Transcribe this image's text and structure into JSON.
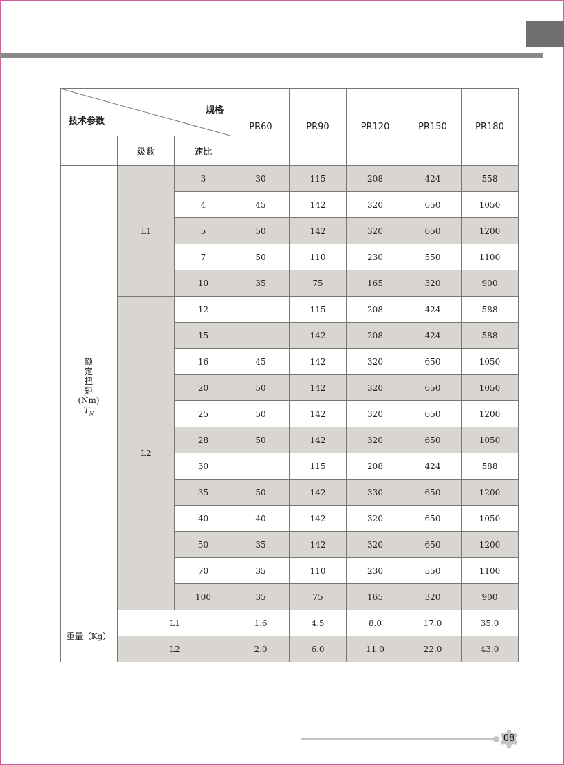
{
  "header": {
    "param_label": "技术参数",
    "spec_label": "规格",
    "stage_label": "级数",
    "ratio_label": "速比"
  },
  "models": [
    "PR60",
    "PR90",
    "PR120",
    "PR150",
    "PR180"
  ],
  "torque": {
    "label_chars": [
      "额",
      "定",
      "扭",
      "矩"
    ],
    "unit": "(Nm)",
    "symbol": "T",
    "symbol_sub": "N"
  },
  "stages": [
    {
      "stage": "L1",
      "rows": [
        {
          "ratio": "3",
          "values": [
            "30",
            "115",
            "208",
            "424",
            "558"
          ]
        },
        {
          "ratio": "4",
          "values": [
            "45",
            "142",
            "320",
            "650",
            "1050"
          ]
        },
        {
          "ratio": "5",
          "values": [
            "50",
            "142",
            "320",
            "650",
            "1200"
          ]
        },
        {
          "ratio": "7",
          "values": [
            "50",
            "110",
            "230",
            "550",
            "1100"
          ]
        },
        {
          "ratio": "10",
          "values": [
            "35",
            "75",
            "165",
            "320",
            "900"
          ]
        }
      ]
    },
    {
      "stage": "L2",
      "rows": [
        {
          "ratio": "12",
          "values": [
            "",
            "115",
            "208",
            "424",
            "588"
          ]
        },
        {
          "ratio": "15",
          "values": [
            "",
            "142",
            "208",
            "424",
            "588"
          ]
        },
        {
          "ratio": "16",
          "values": [
            "45",
            "142",
            "320",
            "650",
            "1050"
          ]
        },
        {
          "ratio": "20",
          "values": [
            "50",
            "142",
            "320",
            "650",
            "1050"
          ]
        },
        {
          "ratio": "25",
          "values": [
            "50",
            "142",
            "320",
            "650",
            "1200"
          ]
        },
        {
          "ratio": "28",
          "values": [
            "50",
            "142",
            "320",
            "650",
            "1050"
          ]
        },
        {
          "ratio": "30",
          "values": [
            "",
            "115",
            "208",
            "424",
            "588"
          ]
        },
        {
          "ratio": "35",
          "values": [
            "50",
            "142",
            "330",
            "650",
            "1200"
          ]
        },
        {
          "ratio": "40",
          "values": [
            "40",
            "142",
            "320",
            "650",
            "1050"
          ]
        },
        {
          "ratio": "50",
          "values": [
            "35",
            "142",
            "320",
            "650",
            "1200"
          ]
        },
        {
          "ratio": "70",
          "values": [
            "35",
            "110",
            "230",
            "550",
            "1100"
          ]
        },
        {
          "ratio": "100",
          "values": [
            "35",
            "75",
            "165",
            "320",
            "900"
          ]
        }
      ]
    }
  ],
  "weight": {
    "label": "重量（Kg）",
    "rows": [
      {
        "stage": "L1",
        "values": [
          "1.6",
          "4.5",
          "8.0",
          "17.0",
          "35.0"
        ]
      },
      {
        "stage": "L2",
        "values": [
          "2.0",
          "6.0",
          "11.0",
          "22.0",
          "43.0"
        ]
      }
    ]
  },
  "page_number": "08",
  "colors": {
    "row_shade": "#d9d6d2",
    "frame": "#d0609a",
    "bar": "#8a8a8a"
  }
}
